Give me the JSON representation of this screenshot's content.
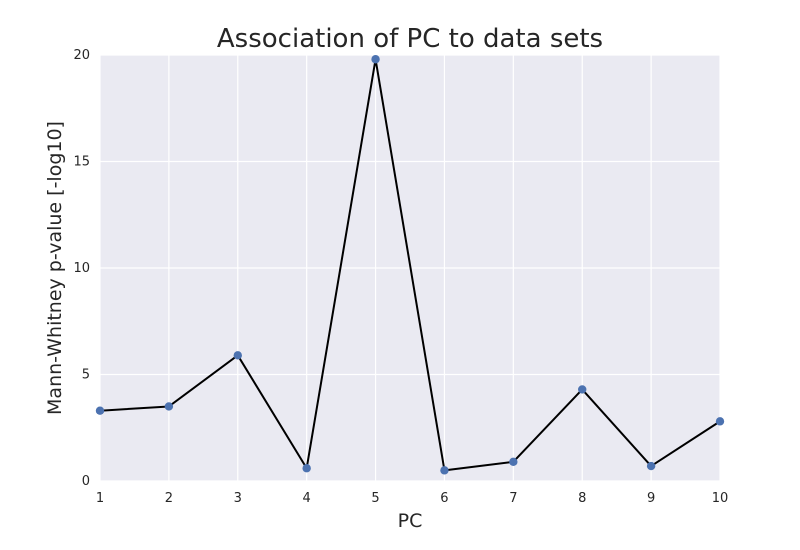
{
  "chart_data": {
    "type": "line",
    "title": "Association of PC to data sets",
    "xlabel": "PC",
    "ylabel": "Mann-Whitney p-value [-log10]",
    "x": [
      1,
      2,
      3,
      4,
      5,
      6,
      7,
      8,
      9,
      10
    ],
    "series": [
      {
        "values": [
          3.3,
          3.5,
          5.9,
          0.6,
          19.8,
          0.5,
          0.9,
          4.3,
          0.7,
          2.8
        ]
      }
    ],
    "xlim": [
      1,
      10
    ],
    "ylim": [
      0,
      20
    ],
    "xticks": [
      "1",
      "2",
      "3",
      "4",
      "5",
      "6",
      "7",
      "8",
      "9",
      "10"
    ],
    "yticks": [
      "0",
      "5",
      "10",
      "15",
      "20"
    ],
    "grid": true,
    "colors": {
      "plot_background": "#eaeaf2",
      "grid": "#ffffff",
      "line": "#000000",
      "marker": "#4c72b0"
    }
  }
}
